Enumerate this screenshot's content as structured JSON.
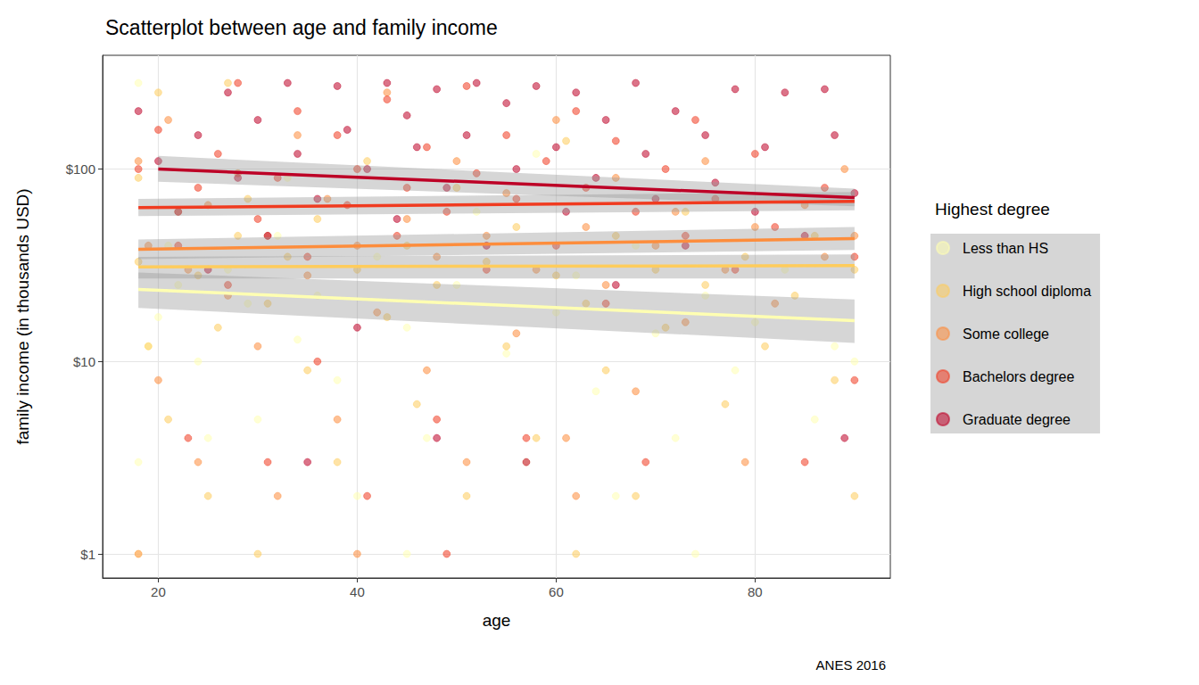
{
  "chart_data": {
    "type": "scatter",
    "title": "Scatterplot between age and family income",
    "x_label": "age",
    "y_label": "family income (in thousands USD)",
    "legend_title": "Highest degree",
    "caption": "ANES 2016",
    "log": "y",
    "grid": true,
    "legend": "right",
    "xlim": [
      14.4,
      93.6
    ],
    "xticks": [
      20,
      40,
      60,
      80
    ],
    "ylim": [
      0.75,
      390
    ],
    "yticks": [
      {
        "value": 1,
        "label": "$1"
      },
      {
        "value": 10,
        "label": "$10"
      },
      {
        "value": 100,
        "label": "$100"
      }
    ],
    "series": [
      {
        "name": "Less than HS",
        "color": "#FFFFB2",
        "marker": "circle",
        "values": [
          [
            18,
            280
          ],
          [
            18,
            3
          ],
          [
            19,
            12
          ],
          [
            20,
            17
          ],
          [
            22,
            25
          ],
          [
            24,
            10
          ],
          [
            25,
            4
          ],
          [
            27,
            30
          ],
          [
            29,
            20
          ],
          [
            30,
            5
          ],
          [
            32,
            45
          ],
          [
            34,
            13
          ],
          [
            36,
            22
          ],
          [
            38,
            8
          ],
          [
            40,
            2
          ],
          [
            42,
            35
          ],
          [
            45,
            15
          ],
          [
            47,
            4
          ],
          [
            50,
            25
          ],
          [
            52,
            60
          ],
          [
            55,
            11
          ],
          [
            57,
            3
          ],
          [
            60,
            18
          ],
          [
            62,
            28
          ],
          [
            64,
            7
          ],
          [
            66,
            2
          ],
          [
            68,
            40
          ],
          [
            70,
            14
          ],
          [
            72,
            4
          ],
          [
            75,
            22
          ],
          [
            78,
            9
          ],
          [
            80,
            16
          ],
          [
            83,
            30
          ],
          [
            86,
            5
          ],
          [
            88,
            12
          ],
          [
            90,
            10
          ],
          [
            18,
            1
          ],
          [
            45,
            1
          ],
          [
            74,
            1
          ],
          [
            21,
            40
          ],
          [
            58,
            120
          ],
          [
            33,
            90
          ]
        ],
        "fit": {
          "x": [
            18,
            90
          ],
          "y": [
            23.7,
            16.3
          ],
          "lower": [
            19,
            12.5
          ],
          "upper": [
            29,
            21
          ]
        }
      },
      {
        "name": "High school diploma",
        "color": "#FECC5C",
        "marker": "circle",
        "values": [
          [
            18,
            90
          ],
          [
            18,
            33
          ],
          [
            19,
            12
          ],
          [
            20,
            250
          ],
          [
            21,
            5
          ],
          [
            22,
            60
          ],
          [
            24,
            28
          ],
          [
            25,
            2
          ],
          [
            26,
            15
          ],
          [
            28,
            45
          ],
          [
            29,
            70
          ],
          [
            30,
            1
          ],
          [
            31,
            20
          ],
          [
            33,
            35
          ],
          [
            35,
            9
          ],
          [
            36,
            55
          ],
          [
            38,
            3
          ],
          [
            40,
            30
          ],
          [
            41,
            110
          ],
          [
            43,
            17
          ],
          [
            45,
            40
          ],
          [
            46,
            6
          ],
          [
            48,
            25
          ],
          [
            50,
            80
          ],
          [
            51,
            2
          ],
          [
            53,
            33
          ],
          [
            55,
            12
          ],
          [
            56,
            50
          ],
          [
            58,
            4
          ],
          [
            60,
            28
          ],
          [
            61,
            140
          ],
          [
            63,
            20
          ],
          [
            65,
            9
          ],
          [
            66,
            45
          ],
          [
            68,
            2
          ],
          [
            70,
            30
          ],
          [
            71,
            15
          ],
          [
            73,
            60
          ],
          [
            75,
            25
          ],
          [
            77,
            6
          ],
          [
            79,
            35
          ],
          [
            81,
            12
          ],
          [
            84,
            22
          ],
          [
            86,
            45
          ],
          [
            88,
            8
          ],
          [
            90,
            2
          ],
          [
            90,
            30
          ],
          [
            62,
            1
          ],
          [
            27,
            280
          ]
        ],
        "fit": {
          "x": [
            18,
            90
          ],
          "y": [
            31,
            31.5
          ],
          "lower": [
            27,
            27
          ],
          "upper": [
            35,
            36
          ]
        }
      },
      {
        "name": "Some college",
        "color": "#FD8D3C",
        "marker": "circle",
        "values": [
          [
            18,
            110
          ],
          [
            18,
            1
          ],
          [
            19,
            40
          ],
          [
            20,
            8
          ],
          [
            21,
            180
          ],
          [
            23,
            30
          ],
          [
            24,
            3
          ],
          [
            25,
            65
          ],
          [
            27,
            22
          ],
          [
            28,
            95
          ],
          [
            30,
            12
          ],
          [
            31,
            45
          ],
          [
            32,
            2
          ],
          [
            34,
            150
          ],
          [
            35,
            28
          ],
          [
            37,
            70
          ],
          [
            38,
            5
          ],
          [
            40,
            40
          ],
          [
            42,
            18
          ],
          [
            43,
            250
          ],
          [
            45,
            55
          ],
          [
            47,
            9
          ],
          [
            48,
            35
          ],
          [
            50,
            110
          ],
          [
            51,
            3
          ],
          [
            53,
            45
          ],
          [
            55,
            75
          ],
          [
            56,
            14
          ],
          [
            58,
            30
          ],
          [
            60,
            180
          ],
          [
            61,
            4
          ],
          [
            63,
            50
          ],
          [
            65,
            25
          ],
          [
            66,
            90
          ],
          [
            68,
            7
          ],
          [
            70,
            40
          ],
          [
            72,
            60
          ],
          [
            73,
            16
          ],
          [
            75,
            110
          ],
          [
            77,
            30
          ],
          [
            79,
            3
          ],
          [
            80,
            50
          ],
          [
            82,
            20
          ],
          [
            85,
            65
          ],
          [
            87,
            35
          ],
          [
            89,
            100
          ],
          [
            90,
            45
          ],
          [
            40,
            1
          ],
          [
            62,
            2
          ]
        ],
        "fit": {
          "x": [
            18,
            90
          ],
          "y": [
            38.3,
            43.5
          ],
          "lower": [
            34,
            38
          ],
          "upper": [
            43,
            50
          ]
        }
      },
      {
        "name": "Bachelors degree",
        "color": "#F03B20",
        "marker": "circle",
        "values": [
          [
            18,
            100
          ],
          [
            20,
            160
          ],
          [
            22,
            40
          ],
          [
            23,
            4
          ],
          [
            24,
            80
          ],
          [
            26,
            120
          ],
          [
            27,
            25
          ],
          [
            28,
            280
          ],
          [
            30,
            55
          ],
          [
            31,
            3
          ],
          [
            32,
            90
          ],
          [
            34,
            200
          ],
          [
            35,
            35
          ],
          [
            36,
            10
          ],
          [
            38,
            150
          ],
          [
            39,
            65
          ],
          [
            40,
            100
          ],
          [
            41,
            2
          ],
          [
            43,
            230
          ],
          [
            44,
            45
          ],
          [
            45,
            80
          ],
          [
            47,
            130
          ],
          [
            48,
            5
          ],
          [
            49,
            60
          ],
          [
            51,
            270
          ],
          [
            52,
            95
          ],
          [
            53,
            30
          ],
          [
            55,
            150
          ],
          [
            56,
            70
          ],
          [
            57,
            4
          ],
          [
            59,
            110
          ],
          [
            60,
            40
          ],
          [
            62,
            200
          ],
          [
            63,
            80
          ],
          [
            65,
            20
          ],
          [
            66,
            140
          ],
          [
            68,
            60
          ],
          [
            69,
            3
          ],
          [
            71,
            100
          ],
          [
            73,
            45
          ],
          [
            74,
            180
          ],
          [
            76,
            70
          ],
          [
            78,
            30
          ],
          [
            80,
            120
          ],
          [
            82,
            50
          ],
          [
            85,
            3
          ],
          [
            87,
            80
          ],
          [
            90,
            35
          ],
          [
            90,
            8
          ],
          [
            49,
            1
          ]
        ],
        "fit": {
          "x": [
            18,
            90
          ],
          "y": [
            63,
            68
          ],
          "lower": [
            57,
            61
          ],
          "upper": [
            70,
            76
          ]
        }
      },
      {
        "name": "Graduate degree",
        "color": "#BD0026",
        "marker": "circle",
        "values": [
          [
            18,
            200
          ],
          [
            20,
            110
          ],
          [
            22,
            60
          ],
          [
            24,
            150
          ],
          [
            25,
            30
          ],
          [
            27,
            250
          ],
          [
            28,
            90
          ],
          [
            30,
            180
          ],
          [
            31,
            45
          ],
          [
            33,
            280
          ],
          [
            34,
            120
          ],
          [
            35,
            3
          ],
          [
            36,
            70
          ],
          [
            38,
            270
          ],
          [
            39,
            160
          ],
          [
            40,
            15
          ],
          [
            41,
            100
          ],
          [
            43,
            280
          ],
          [
            44,
            55
          ],
          [
            45,
            190
          ],
          [
            46,
            130
          ],
          [
            48,
            4
          ],
          [
            48,
            260
          ],
          [
            49,
            80
          ],
          [
            51,
            150
          ],
          [
            52,
            280
          ],
          [
            53,
            40
          ],
          [
            55,
            220
          ],
          [
            56,
            100
          ],
          [
            57,
            3
          ],
          [
            58,
            270
          ],
          [
            60,
            130
          ],
          [
            61,
            60
          ],
          [
            62,
            250
          ],
          [
            64,
            90
          ],
          [
            65,
            180
          ],
          [
            66,
            25
          ],
          [
            68,
            280
          ],
          [
            69,
            120
          ],
          [
            70,
            70
          ],
          [
            72,
            200
          ],
          [
            73,
            40
          ],
          [
            75,
            150
          ],
          [
            76,
            85
          ],
          [
            78,
            260
          ],
          [
            80,
            60
          ],
          [
            81,
            130
          ],
          [
            83,
            250
          ],
          [
            85,
            45
          ],
          [
            87,
            260
          ],
          [
            88,
            150
          ],
          [
            89,
            4
          ],
          [
            90,
            75
          ]
        ],
        "fit": {
          "x": [
            20,
            90
          ],
          "y": [
            100,
            71
          ],
          "lower": [
            86,
            64
          ],
          "upper": [
            117,
            79
          ]
        }
      }
    ]
  }
}
